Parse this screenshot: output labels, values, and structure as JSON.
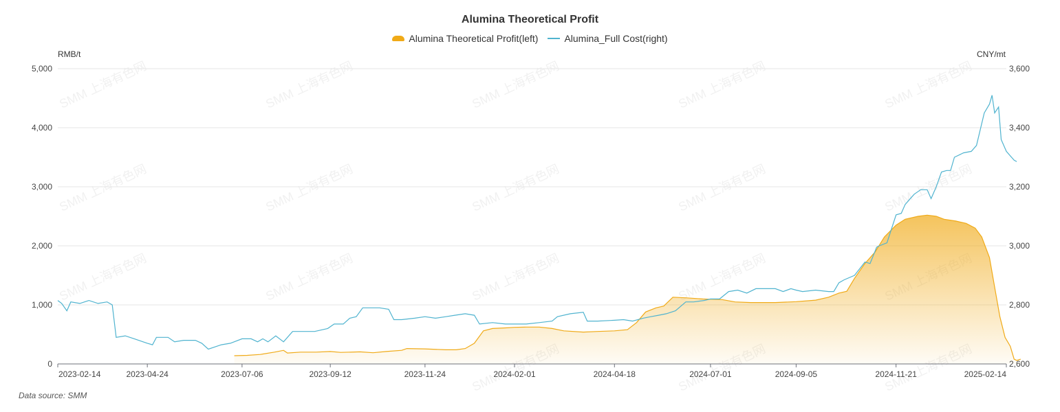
{
  "chart_data": {
    "type": "line",
    "title": "Alumina Theoretical Profit",
    "legend": [
      "Alumina Theoretical Profit(left)",
      "Alumina_Full Cost(right)"
    ],
    "legend_placement": "top-center",
    "left_unit": "RMB/t",
    "right_unit": "CNY/mt",
    "left_ylim": [
      0,
      5000
    ],
    "right_ylim": [
      2600,
      3600
    ],
    "left_ticks": [
      "0",
      "1,000",
      "2,000",
      "3,000",
      "4,000",
      "5,000"
    ],
    "right_ticks": [
      "2,600",
      "2,800",
      "3,000",
      "3,200",
      "3,400",
      "3,600"
    ],
    "x_ticks": [
      "2023-02-14",
      "2023-04-24",
      "2023-07-06",
      "2023-09-12",
      "2023-11-24",
      "2024-02-01",
      "2024-04-18",
      "2024-07-01",
      "2024-09-05",
      "2024-11-21",
      "2025-02-14"
    ],
    "grid": "horizontal",
    "series": [
      {
        "name": "Alumina Theoretical Profit(left)",
        "kind": "area",
        "axis": "left",
        "color": "#F0AA17",
        "points": [
          [
            "2023-06-30",
            140
          ],
          [
            "2023-07-10",
            145
          ],
          [
            "2023-07-20",
            160
          ],
          [
            "2023-07-31",
            200
          ],
          [
            "2023-08-07",
            230
          ],
          [
            "2023-08-10",
            185
          ],
          [
            "2023-08-20",
            200
          ],
          [
            "2023-09-01",
            200
          ],
          [
            "2023-09-12",
            210
          ],
          [
            "2023-09-20",
            195
          ],
          [
            "2023-10-05",
            205
          ],
          [
            "2023-10-15",
            190
          ],
          [
            "2023-10-25",
            210
          ],
          [
            "2023-11-06",
            230
          ],
          [
            "2023-11-10",
            260
          ],
          [
            "2023-11-24",
            255
          ],
          [
            "2023-12-10",
            240
          ],
          [
            "2023-12-18",
            240
          ],
          [
            "2023-12-25",
            260
          ],
          [
            "2024-01-01",
            350
          ],
          [
            "2024-01-08",
            560
          ],
          [
            "2024-01-15",
            600
          ],
          [
            "2024-01-25",
            610
          ],
          [
            "2024-02-01",
            620
          ],
          [
            "2024-02-10",
            625
          ],
          [
            "2024-02-20",
            625
          ],
          [
            "2024-03-01",
            600
          ],
          [
            "2024-03-10",
            560
          ],
          [
            "2024-03-25",
            540
          ],
          [
            "2024-04-05",
            550
          ],
          [
            "2024-04-18",
            560
          ],
          [
            "2024-04-28",
            580
          ],
          [
            "2024-05-05",
            700
          ],
          [
            "2024-05-12",
            880
          ],
          [
            "2024-05-20",
            950
          ],
          [
            "2024-05-26",
            980
          ],
          [
            "2024-06-02",
            1130
          ],
          [
            "2024-06-12",
            1120
          ],
          [
            "2024-06-25",
            1100
          ],
          [
            "2024-07-01",
            1095
          ],
          [
            "2024-07-10",
            1090
          ],
          [
            "2024-07-20",
            1050
          ],
          [
            "2024-08-01",
            1040
          ],
          [
            "2024-08-20",
            1040
          ],
          [
            "2024-09-05",
            1055
          ],
          [
            "2024-09-20",
            1080
          ],
          [
            "2024-09-30",
            1130
          ],
          [
            "2024-10-08",
            1200
          ],
          [
            "2024-10-14",
            1230
          ],
          [
            "2024-10-20",
            1450
          ],
          [
            "2024-10-28",
            1700
          ],
          [
            "2024-11-05",
            1900
          ],
          [
            "2024-11-12",
            2150
          ],
          [
            "2024-11-21",
            2350
          ],
          [
            "2024-11-28",
            2450
          ],
          [
            "2024-12-08",
            2500
          ],
          [
            "2024-12-15",
            2520
          ],
          [
            "2024-12-22",
            2500
          ],
          [
            "2024-12-28",
            2450
          ],
          [
            "2025-01-06",
            2420
          ],
          [
            "2025-01-14",
            2380
          ],
          [
            "2025-01-21",
            2300
          ],
          [
            "2025-01-26",
            2150
          ],
          [
            "2025-02-01",
            1800
          ],
          [
            "2025-02-05",
            1300
          ],
          [
            "2025-02-09",
            800
          ],
          [
            "2025-02-13",
            450
          ],
          [
            "2025-02-17",
            300
          ],
          [
            "2025-02-20",
            80
          ],
          [
            "2025-02-22",
            60
          ],
          [
            "2025-02-25",
            80
          ]
        ]
      },
      {
        "name": "Alumina_Full Cost(right)",
        "kind": "line",
        "axis": "right",
        "color": "#4FB3CF",
        "points": [
          [
            "2023-02-14",
            2815
          ],
          [
            "2023-02-17",
            2805
          ],
          [
            "2023-02-21",
            2780
          ],
          [
            "2023-02-24",
            2810
          ],
          [
            "2023-03-03",
            2805
          ],
          [
            "2023-03-10",
            2815
          ],
          [
            "2023-03-17",
            2805
          ],
          [
            "2023-03-24",
            2810
          ],
          [
            "2023-03-28",
            2800
          ],
          [
            "2023-03-31",
            2690
          ],
          [
            "2023-04-07",
            2695
          ],
          [
            "2023-04-14",
            2685
          ],
          [
            "2023-04-24",
            2670
          ],
          [
            "2023-04-28",
            2665
          ],
          [
            "2023-05-01",
            2690
          ],
          [
            "2023-05-10",
            2690
          ],
          [
            "2023-05-15",
            2675
          ],
          [
            "2023-05-22",
            2680
          ],
          [
            "2023-05-31",
            2680
          ],
          [
            "2023-06-05",
            2670
          ],
          [
            "2023-06-10",
            2650
          ],
          [
            "2023-06-20",
            2665
          ],
          [
            "2023-06-27",
            2670
          ],
          [
            "2023-07-06",
            2685
          ],
          [
            "2023-07-13",
            2685
          ],
          [
            "2023-07-18",
            2675
          ],
          [
            "2023-07-22",
            2685
          ],
          [
            "2023-07-26",
            2675
          ],
          [
            "2023-08-01",
            2695
          ],
          [
            "2023-08-07",
            2675
          ],
          [
            "2023-08-14",
            2710
          ],
          [
            "2023-08-20",
            2710
          ],
          [
            "2023-08-31",
            2710
          ],
          [
            "2023-09-10",
            2720
          ],
          [
            "2023-09-15",
            2735
          ],
          [
            "2023-09-22",
            2735
          ],
          [
            "2023-09-27",
            2755
          ],
          [
            "2023-10-02",
            2760
          ],
          [
            "2023-10-07",
            2790
          ],
          [
            "2023-10-20",
            2790
          ],
          [
            "2023-10-27",
            2785
          ],
          [
            "2023-10-31",
            2750
          ],
          [
            "2023-11-06",
            2750
          ],
          [
            "2023-11-16",
            2755
          ],
          [
            "2023-11-24",
            2760
          ],
          [
            "2023-12-02",
            2755
          ],
          [
            "2023-12-10",
            2760
          ],
          [
            "2023-12-17",
            2765
          ],
          [
            "2023-12-25",
            2770
          ],
          [
            "2024-01-01",
            2765
          ],
          [
            "2024-01-05",
            2735
          ],
          [
            "2024-01-15",
            2740
          ],
          [
            "2024-01-25",
            2735
          ],
          [
            "2024-02-01",
            2735
          ],
          [
            "2024-02-10",
            2735
          ],
          [
            "2024-02-20",
            2740
          ],
          [
            "2024-03-01",
            2745
          ],
          [
            "2024-03-05",
            2760
          ],
          [
            "2024-03-15",
            2770
          ],
          [
            "2024-03-25",
            2775
          ],
          [
            "2024-03-28",
            2745
          ],
          [
            "2024-04-05",
            2745
          ],
          [
            "2024-04-18",
            2748
          ],
          [
            "2024-04-25",
            2750
          ],
          [
            "2024-05-02",
            2745
          ],
          [
            "2024-05-10",
            2755
          ],
          [
            "2024-05-16",
            2760
          ],
          [
            "2024-05-22",
            2765
          ],
          [
            "2024-05-28",
            2770
          ],
          [
            "2024-06-04",
            2780
          ],
          [
            "2024-06-12",
            2810
          ],
          [
            "2024-06-18",
            2810
          ],
          [
            "2024-06-26",
            2815
          ],
          [
            "2024-07-01",
            2820
          ],
          [
            "2024-07-08",
            2820
          ],
          [
            "2024-07-15",
            2845
          ],
          [
            "2024-07-22",
            2850
          ],
          [
            "2024-07-29",
            2840
          ],
          [
            "2024-08-05",
            2855
          ],
          [
            "2024-08-20",
            2855
          ],
          [
            "2024-08-26",
            2845
          ],
          [
            "2024-09-01",
            2855
          ],
          [
            "2024-09-05",
            2850
          ],
          [
            "2024-09-10",
            2845
          ],
          [
            "2024-09-20",
            2850
          ],
          [
            "2024-09-30",
            2845
          ],
          [
            "2024-10-04",
            2845
          ],
          [
            "2024-10-08",
            2875
          ],
          [
            "2024-10-12",
            2885
          ],
          [
            "2024-10-20",
            2900
          ],
          [
            "2024-10-28",
            2945
          ],
          [
            "2024-11-01",
            2940
          ],
          [
            "2024-11-06",
            2995
          ],
          [
            "2024-11-08",
            3000
          ],
          [
            "2024-11-14",
            3010
          ],
          [
            "2024-11-21",
            3105
          ],
          [
            "2024-11-25",
            3110
          ],
          [
            "2024-11-28",
            3140
          ],
          [
            "2024-12-02",
            3160
          ],
          [
            "2024-12-05",
            3175
          ],
          [
            "2024-12-10",
            3190
          ],
          [
            "2024-12-15",
            3190
          ],
          [
            "2024-12-18",
            3160
          ],
          [
            "2024-12-22",
            3200
          ],
          [
            "2024-12-26",
            3250
          ],
          [
            "2024-12-30",
            3255
          ],
          [
            "2025-01-02",
            3255
          ],
          [
            "2025-01-05",
            3300
          ],
          [
            "2025-01-12",
            3315
          ],
          [
            "2025-01-18",
            3320
          ],
          [
            "2025-01-22",
            3340
          ],
          [
            "2025-01-28",
            3450
          ],
          [
            "2025-02-01",
            3480
          ],
          [
            "2025-02-03",
            3510
          ],
          [
            "2025-02-05",
            3450
          ],
          [
            "2025-02-08",
            3470
          ],
          [
            "2025-02-10",
            3360
          ],
          [
            "2025-02-14",
            3320
          ],
          [
            "2025-02-18",
            3300
          ],
          [
            "2025-02-20",
            3290
          ],
          [
            "2025-02-22",
            3285
          ]
        ]
      }
    ]
  },
  "watermark_text": "SMM 上海有色网",
  "source_text": "Data source:  SMM"
}
